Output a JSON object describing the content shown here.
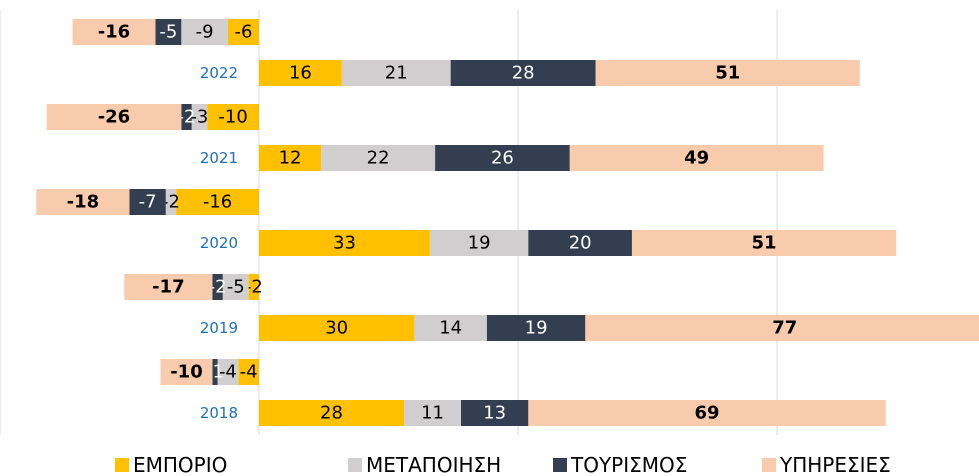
{
  "chart_data": {
    "type": "diverging-stacked-bar",
    "categories": [
      "2022",
      "2021",
      "2020",
      "2019",
      "2018"
    ],
    "series": [
      {
        "name": "ΕΜΠΟΡΙΟ",
        "color": "#ffc000",
        "values": [
          16,
          12,
          33,
          30,
          28
        ],
        "negative_values": [
          -6,
          -10,
          -16,
          -2,
          -4
        ]
      },
      {
        "name": "ΜΕΤΑΠΟΙΗΣΗ",
        "color": "#d0cece",
        "values": [
          21,
          22,
          19,
          14,
          11
        ],
        "negative_values": [
          -9,
          -3,
          -2,
          -5,
          -4
        ]
      },
      {
        "name": "ΤΟΥΡΙΣΜΟΣ",
        "color": "#333f50",
        "values": [
          28,
          26,
          20,
          19,
          13
        ],
        "negative_values": [
          -5,
          -2,
          -7,
          -2,
          -1
        ]
      },
      {
        "name": "ΥΠΗΡΕΣΙΕΣ",
        "color": "#f8cbad",
        "values": [
          51,
          49,
          51,
          77,
          69
        ],
        "negative_values": [
          -16,
          -26,
          -18,
          -17,
          -10
        ]
      }
    ],
    "xlim": [
      -50,
      139
    ],
    "xticks": [
      -50,
      0,
      50,
      100
    ],
    "grid": true,
    "legend": "bottom"
  }
}
